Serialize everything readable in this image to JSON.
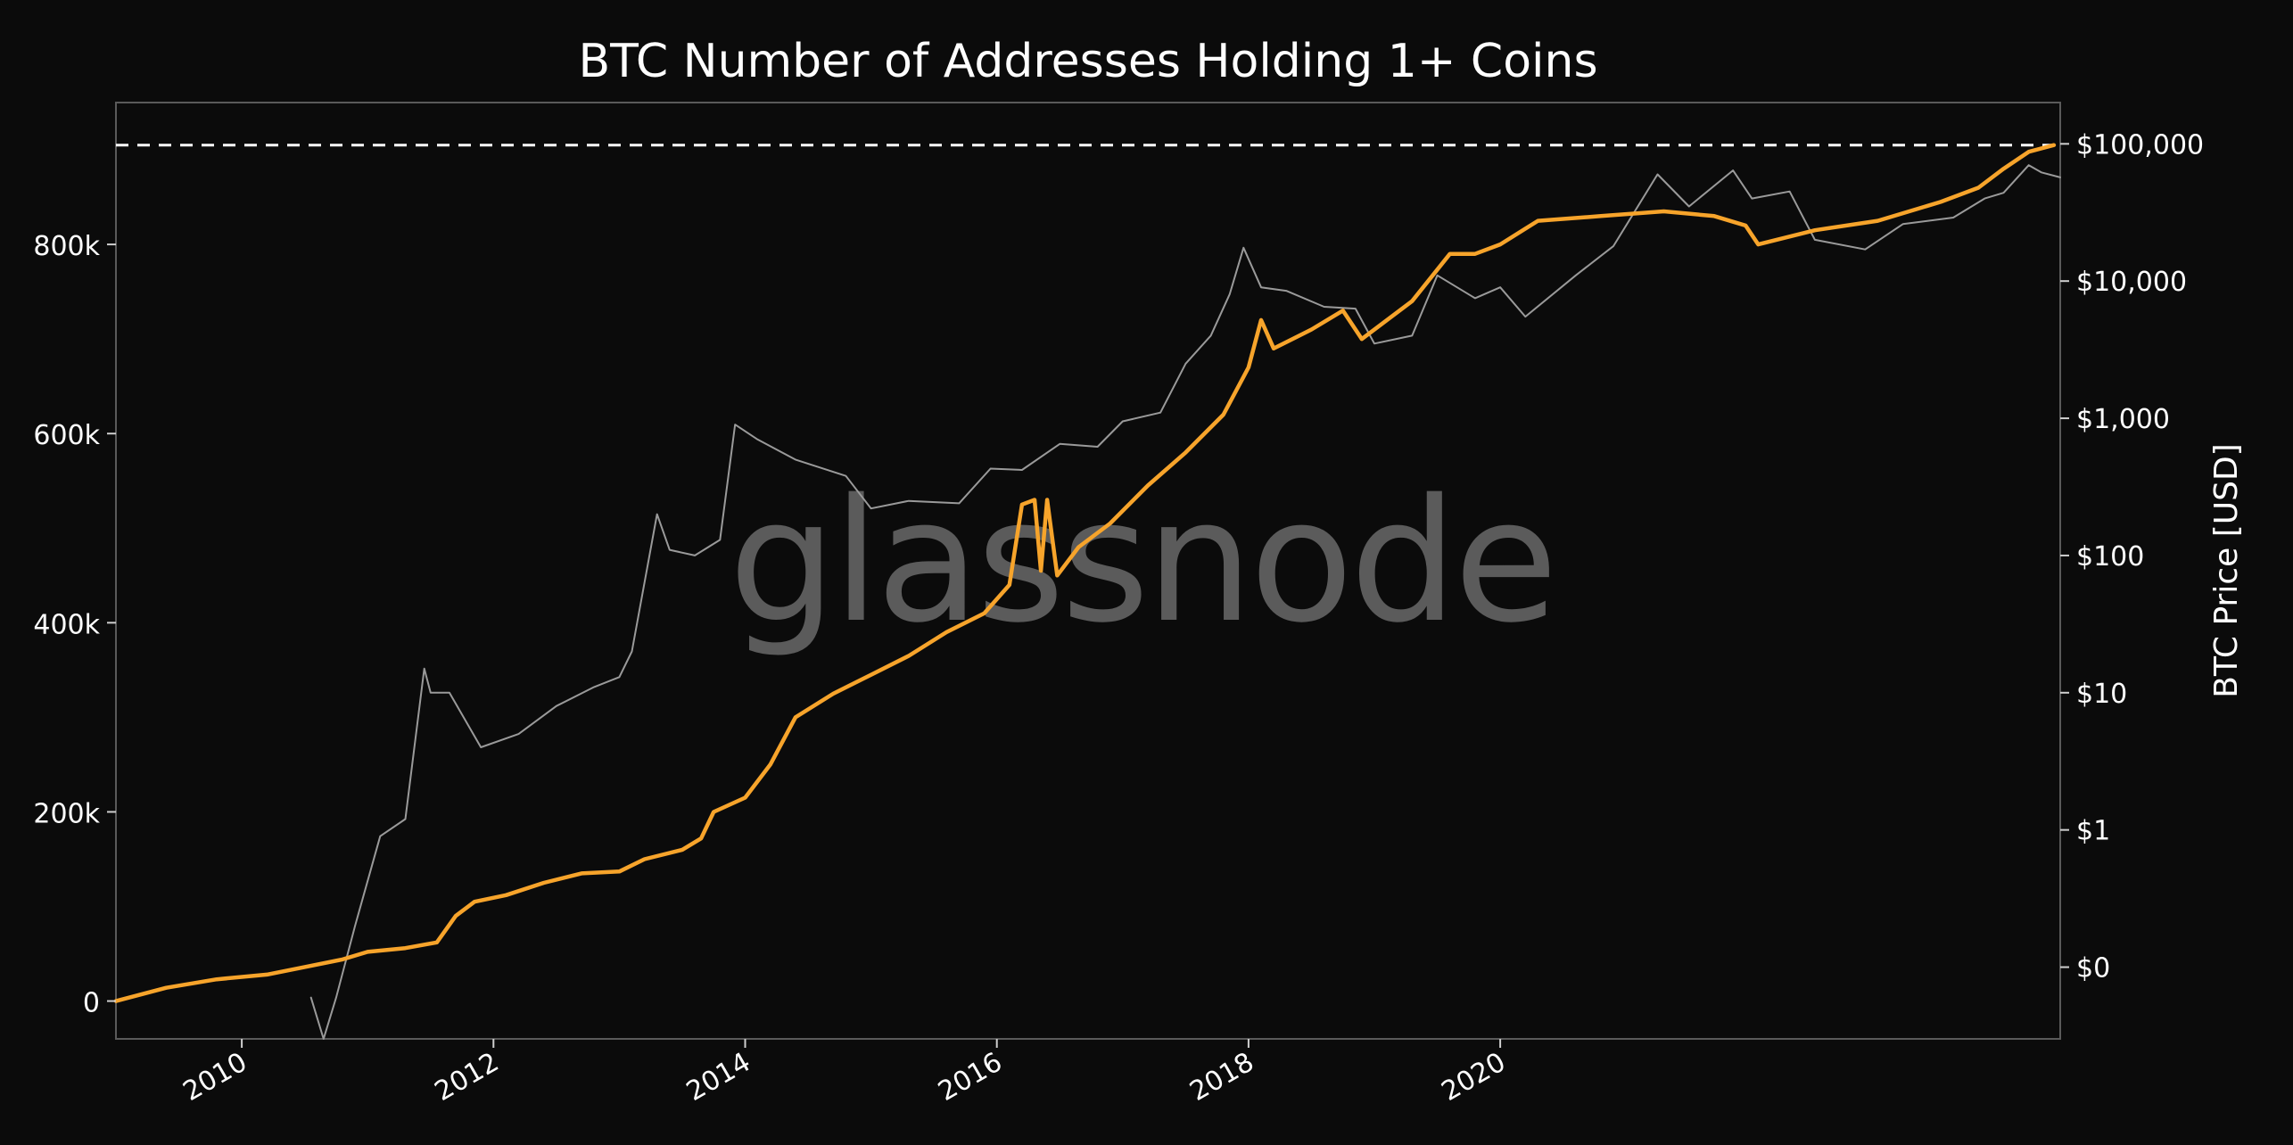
{
  "chart_data": {
    "type": "line",
    "title": "BTC Number of Addresses Holding 1+ Coins",
    "watermark": "glassnode",
    "right_axis_label": "BTC Price [USD]",
    "x_tick_labels": [
      "2010",
      "2012",
      "2014",
      "2016",
      "2018",
      "2020"
    ],
    "x_ticks": [
      2010,
      2012,
      2014,
      2016,
      2018,
      2020
    ],
    "xlim": [
      2009.0,
      2024.45
    ],
    "left_ylim": [
      -40000,
      950000
    ],
    "left_ticks": [
      0,
      200000,
      400000,
      600000,
      800000
    ],
    "left_tick_labels": [
      "0",
      "200k",
      "400k",
      "600k",
      "800k"
    ],
    "right_scale": "log",
    "right_ylim": [
      0.03,
      200000
    ],
    "right_ticks": [
      0.1,
      1,
      10,
      100,
      1000,
      10000,
      100000
    ],
    "right_tick_labels": [
      "$0",
      "$1",
      "$10",
      "$100",
      "$1,000",
      "$10,000",
      "$100,000"
    ],
    "grid": false,
    "colors": {
      "addresses": "#f7a42b",
      "price": "#9a9a9a",
      "ath_line": "#ffffff",
      "background": "#0b0b0b"
    },
    "reference_line": {
      "axis": "left",
      "value": 905000,
      "style": "dashed"
    },
    "series": [
      {
        "axis": "left",
        "color": "#f7a42b",
        "points": [
          [
            2009.0,
            0
          ],
          [
            2009.4,
            14000
          ],
          [
            2009.8,
            23000
          ],
          [
            2010.2,
            28000
          ],
          [
            2010.5,
            36000
          ],
          [
            2010.8,
            44000
          ],
          [
            2011.0,
            52000
          ],
          [
            2011.3,
            56000
          ],
          [
            2011.55,
            62000
          ],
          [
            2011.7,
            90000
          ],
          [
            2011.85,
            105000
          ],
          [
            2012.1,
            112000
          ],
          [
            2012.4,
            125000
          ],
          [
            2012.7,
            135000
          ],
          [
            2013.0,
            137000
          ],
          [
            2013.2,
            150000
          ],
          [
            2013.5,
            160000
          ],
          [
            2013.65,
            172000
          ],
          [
            2013.75,
            200000
          ],
          [
            2014.0,
            215000
          ],
          [
            2014.2,
            250000
          ],
          [
            2014.4,
            300000
          ],
          [
            2014.7,
            325000
          ],
          [
            2015.0,
            345000
          ],
          [
            2015.3,
            365000
          ],
          [
            2015.6,
            390000
          ],
          [
            2015.9,
            410000
          ],
          [
            2016.1,
            440000
          ],
          [
            2016.2,
            525000
          ],
          [
            2016.3,
            530000
          ],
          [
            2016.35,
            455000
          ],
          [
            2016.4,
            530000
          ],
          [
            2016.48,
            450000
          ],
          [
            2016.65,
            480000
          ],
          [
            2016.9,
            505000
          ],
          [
            2017.2,
            545000
          ],
          [
            2017.5,
            580000
          ],
          [
            2017.8,
            620000
          ],
          [
            2018.0,
            670000
          ],
          [
            2018.1,
            720000
          ],
          [
            2018.2,
            690000
          ],
          [
            2018.5,
            710000
          ],
          [
            2018.75,
            730000
          ],
          [
            2018.9,
            700000
          ],
          [
            2019.3,
            740000
          ],
          [
            2019.6,
            790000
          ],
          [
            2019.8,
            790000
          ],
          [
            2020.0,
            800000
          ],
          [
            2020.3,
            825000
          ],
          [
            2020.8,
            830000
          ],
          [
            2021.3,
            835000
          ],
          [
            2021.7,
            830000
          ],
          [
            2021.95,
            820000
          ],
          [
            2022.05,
            800000
          ],
          [
            2022.5,
            815000
          ],
          [
            2023.0,
            825000
          ],
          [
            2023.5,
            845000
          ],
          [
            2023.8,
            860000
          ],
          [
            2024.0,
            880000
          ],
          [
            2024.2,
            898000
          ],
          [
            2024.4,
            905000
          ]
        ]
      },
      {
        "axis": "right",
        "color": "#9a9a9a",
        "points": [
          [
            2010.55,
            0.06
          ],
          [
            2010.65,
            0.03
          ],
          [
            2010.75,
            0.06
          ],
          [
            2010.9,
            0.2
          ],
          [
            2011.1,
            0.9
          ],
          [
            2011.3,
            1.2
          ],
          [
            2011.45,
            15
          ],
          [
            2011.5,
            10
          ],
          [
            2011.65,
            10
          ],
          [
            2011.9,
            4
          ],
          [
            2012.2,
            5
          ],
          [
            2012.5,
            8
          ],
          [
            2012.8,
            11
          ],
          [
            2013.0,
            13
          ],
          [
            2013.1,
            20
          ],
          [
            2013.3,
            200
          ],
          [
            2013.4,
            110
          ],
          [
            2013.6,
            100
          ],
          [
            2013.8,
            130
          ],
          [
            2013.92,
            900
          ],
          [
            2014.1,
            700
          ],
          [
            2014.4,
            500
          ],
          [
            2014.8,
            380
          ],
          [
            2015.0,
            220
          ],
          [
            2015.3,
            250
          ],
          [
            2015.7,
            240
          ],
          [
            2015.95,
            430
          ],
          [
            2016.2,
            420
          ],
          [
            2016.5,
            650
          ],
          [
            2016.8,
            620
          ],
          [
            2017.0,
            950
          ],
          [
            2017.3,
            1100
          ],
          [
            2017.5,
            2500
          ],
          [
            2017.7,
            4000
          ],
          [
            2017.85,
            8000
          ],
          [
            2017.96,
            17500
          ],
          [
            2018.1,
            9000
          ],
          [
            2018.3,
            8500
          ],
          [
            2018.6,
            6500
          ],
          [
            2018.85,
            6300
          ],
          [
            2019.0,
            3500
          ],
          [
            2019.3,
            4000
          ],
          [
            2019.5,
            11000
          ],
          [
            2019.8,
            7500
          ],
          [
            2020.0,
            9000
          ],
          [
            2020.2,
            5500
          ],
          [
            2020.6,
            11000
          ],
          [
            2020.9,
            18000
          ],
          [
            2021.25,
            60000
          ],
          [
            2021.5,
            35000
          ],
          [
            2021.85,
            64000
          ],
          [
            2022.0,
            40000
          ],
          [
            2022.3,
            45000
          ],
          [
            2022.5,
            20000
          ],
          [
            2022.9,
            17000
          ],
          [
            2023.2,
            26000
          ],
          [
            2023.6,
            29000
          ],
          [
            2023.85,
            40000
          ],
          [
            2024.0,
            44000
          ],
          [
            2024.2,
            70000
          ],
          [
            2024.3,
            62000
          ],
          [
            2024.45,
            57000
          ]
        ]
      }
    ]
  }
}
